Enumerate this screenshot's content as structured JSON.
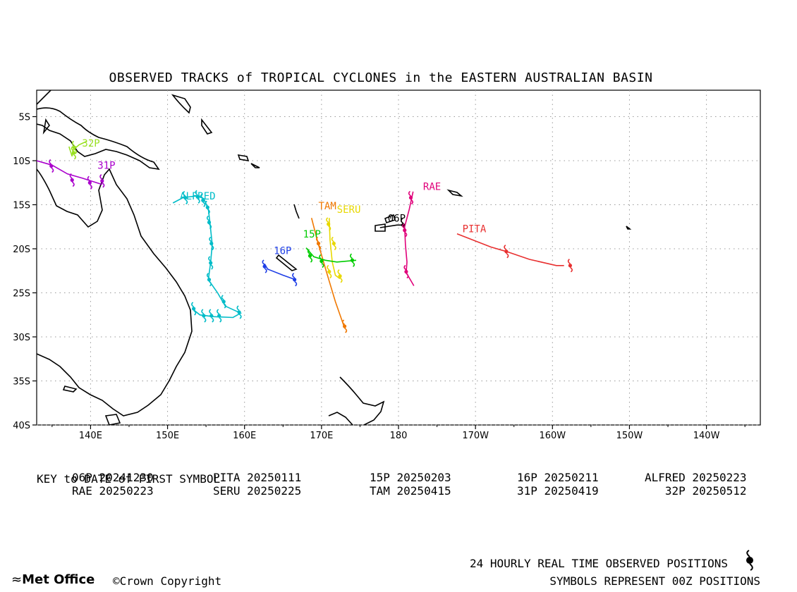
{
  "title": "OBSERVED TRACKS of TROPICAL CYCLONES in the EASTERN AUSTRALIAN BASIN",
  "axes": {
    "lon_range": [
      133,
      227
    ],
    "lat_range": [
      -40,
      -2
    ],
    "x_ticks": [
      {
        "lon": 140,
        "label": "140E"
      },
      {
        "lon": 150,
        "label": "150E"
      },
      {
        "lon": 160,
        "label": "160E"
      },
      {
        "lon": 170,
        "label": "170E"
      },
      {
        "lon": 180,
        "label": "180"
      },
      {
        "lon": 190,
        "label": "170W"
      },
      {
        "lon": 200,
        "label": "160W"
      },
      {
        "lon": 210,
        "label": "150W"
      },
      {
        "lon": 220,
        "label": "140W"
      }
    ],
    "y_ticks": [
      {
        "lat": -5,
        "label": "5S"
      },
      {
        "lat": -10,
        "label": "10S"
      },
      {
        "lat": -15,
        "label": "15S"
      },
      {
        "lat": -20,
        "label": "20S"
      },
      {
        "lat": -25,
        "label": "25S"
      },
      {
        "lat": -30,
        "label": "30S"
      },
      {
        "lat": -35,
        "label": "35S"
      },
      {
        "lat": -40,
        "label": "40S"
      }
    ],
    "grid": true
  },
  "chart_data": {
    "type": "map",
    "tracks": [
      {
        "name": "06P",
        "color": "#000000",
        "label_at": [
          178.6,
          -16.9
        ],
        "points": [
          [
            177.6,
            -17.6
          ],
          [
            179.8,
            -17.3
          ],
          [
            180.8,
            -17.3
          ]
        ],
        "symbols": [
          [
            180.6,
            -17.3
          ]
        ]
      },
      {
        "name": "RAE",
        "color": "#e0007a",
        "label_at": [
          183.2,
          -13.3
        ],
        "points": [
          [
            181.9,
            -13.5
          ],
          [
            181.4,
            -15.5
          ],
          [
            180.8,
            -17.5
          ],
          [
            180.9,
            -19.5
          ],
          [
            181.1,
            -21.5
          ],
          [
            181.0,
            -22.7
          ],
          [
            182.0,
            -24.2
          ]
        ],
        "symbols": [
          [
            181.6,
            -14.2
          ],
          [
            180.8,
            -17.9
          ],
          [
            181.0,
            -22.6
          ]
        ]
      },
      {
        "name": "PITA",
        "color": "#e83030",
        "label_at": [
          188.3,
          -18.1
        ],
        "points": [
          [
            187.6,
            -18.3
          ],
          [
            192.0,
            -19.8
          ],
          [
            194.0,
            -20.3
          ],
          [
            197.0,
            -21.2
          ],
          [
            200.5,
            -21.9
          ],
          [
            201.5,
            -21.9
          ]
        ],
        "symbols": [
          [
            194.0,
            -20.3
          ],
          [
            202.3,
            -21.9
          ]
        ]
      },
      {
        "name": "TAM",
        "color": "#f07800",
        "label_at": [
          169.6,
          -15.5
        ],
        "points": [
          [
            168.7,
            -16.5
          ],
          [
            169.5,
            -19.2
          ],
          [
            170.6,
            -22.5
          ],
          [
            171.8,
            -26.0
          ],
          [
            173.0,
            -29.0
          ]
        ],
        "symbols": [
          [
            169.6,
            -19.4
          ],
          [
            173.0,
            -28.8
          ]
        ]
      },
      {
        "name": "SERU",
        "color": "#e8d800",
        "label_at": [
          172.0,
          -15.9
        ],
        "points": [
          [
            171.0,
            -16.5
          ],
          [
            171.1,
            -19.0
          ],
          [
            171.4,
            -21.5
          ],
          [
            171.8,
            -23.0
          ],
          [
            172.4,
            -23.4
          ]
        ],
        "symbols": [
          [
            170.9,
            -17.2
          ],
          [
            171.6,
            -19.4
          ],
          [
            171.0,
            -22.6
          ],
          [
            172.4,
            -23.1
          ]
        ]
      },
      {
        "name": "15P",
        "color": "#00cc00",
        "label_at": [
          167.6,
          -18.7
        ],
        "points": [
          [
            168.0,
            -19.9
          ],
          [
            169.0,
            -20.9
          ],
          [
            170.5,
            -21.3
          ],
          [
            172.0,
            -21.5
          ],
          [
            174.5,
            -21.3
          ]
        ],
        "symbols": [
          [
            168.5,
            -20.8
          ],
          [
            170.0,
            -21.4
          ],
          [
            174.0,
            -21.3
          ]
        ]
      },
      {
        "name": "16P",
        "color": "#1e3ee6",
        "label_at": [
          163.8,
          -20.6
        ],
        "points": [
          [
            162.6,
            -21.7
          ],
          [
            163.0,
            -22.3
          ],
          [
            165.0,
            -23.0
          ],
          [
            166.6,
            -23.5
          ]
        ],
        "symbols": [
          [
            162.6,
            -22.0
          ],
          [
            166.5,
            -23.5
          ]
        ]
      },
      {
        "name": "ALFRED",
        "color": "#00bcc8",
        "label_at": [
          151.6,
          -14.4
        ],
        "points": [
          [
            150.7,
            -14.8
          ],
          [
            152.0,
            -14.2
          ],
          [
            153.8,
            -14.0
          ],
          [
            154.7,
            -14.3
          ],
          [
            155.3,
            -15.5
          ],
          [
            155.5,
            -17.0
          ],
          [
            155.8,
            -19.5
          ],
          [
            155.6,
            -21.5
          ],
          [
            155.3,
            -23.5
          ],
          [
            156.5,
            -25.0
          ],
          [
            157.5,
            -26.5
          ],
          [
            159.5,
            -27.3
          ],
          [
            158.5,
            -27.8
          ],
          [
            156.0,
            -27.7
          ],
          [
            154.2,
            -27.5
          ],
          [
            153.2,
            -26.8
          ]
        ],
        "symbols": [
          [
            152.3,
            -14.2
          ],
          [
            153.9,
            -14.1
          ],
          [
            154.6,
            -14.5
          ],
          [
            155.2,
            -15.3
          ],
          [
            155.4,
            -17.0
          ],
          [
            155.7,
            -19.4
          ],
          [
            155.6,
            -21.6
          ],
          [
            155.4,
            -23.5
          ],
          [
            157.3,
            -26.0
          ],
          [
            159.3,
            -27.2
          ],
          [
            156.7,
            -27.6
          ],
          [
            155.7,
            -27.6
          ],
          [
            154.7,
            -27.6
          ],
          [
            153.4,
            -26.8
          ]
        ]
      },
      {
        "name": "31P",
        "color": "#aa00cc",
        "label_at": [
          140.9,
          -10.9
        ],
        "points": [
          [
            133.0,
            -10.0
          ],
          [
            135.0,
            -10.5
          ],
          [
            137.0,
            -11.5
          ],
          [
            139.0,
            -12.0
          ],
          [
            141.5,
            -12.7
          ]
        ],
        "symbols": [
          [
            134.9,
            -10.6
          ],
          [
            137.6,
            -12.2
          ],
          [
            139.9,
            -12.5
          ],
          [
            141.5,
            -12.3
          ]
        ]
      },
      {
        "name": "32P",
        "color": "#99e020",
        "label_at": [
          138.9,
          -8.4
        ],
        "points": [
          [
            139.5,
            -7.8
          ],
          [
            138.5,
            -8.2
          ],
          [
            137.7,
            -8.8
          ],
          [
            137.6,
            -9.5
          ],
          [
            137.2,
            -8.4
          ]
        ],
        "symbols": [
          [
            137.9,
            -8.5
          ],
          [
            137.8,
            -9.1
          ]
        ]
      }
    ]
  },
  "key": {
    "columns": [
      [
        "06P 20241230",
        "RAE 20250223"
      ],
      [
        "PITA 20250111",
        "SERU 20250225"
      ],
      [
        "15P 20250203",
        "TAM 20250415"
      ],
      [
        "16P 20250211",
        "31P 20250419"
      ],
      [
        "ALFRED 20250223",
        "32P 20250512"
      ]
    ],
    "note": "KEY to DATE of FIRST SYMBOL"
  },
  "footer": {
    "line1": "24 HOURLY REAL TIME OBSERVED POSITIONS",
    "line2": "SYMBOLS REPRESENT 00Z POSITIONS",
    "brand": "Met Office",
    "copyright": "Crown Copyright"
  }
}
